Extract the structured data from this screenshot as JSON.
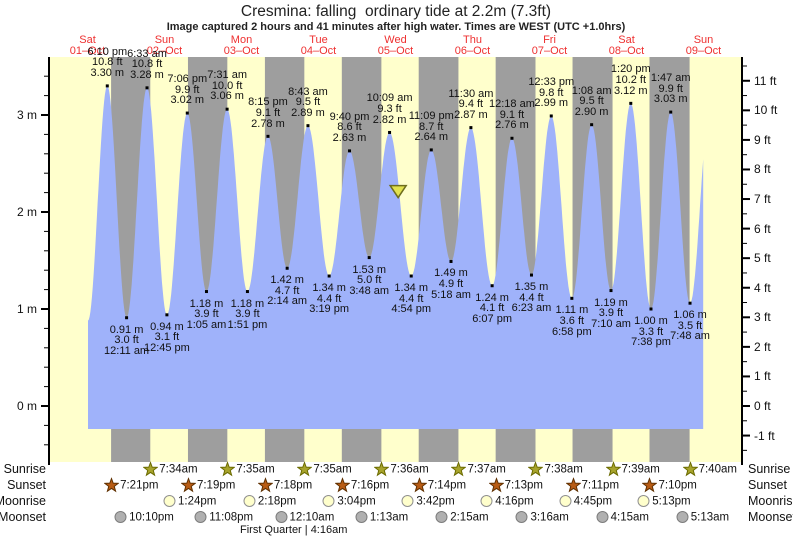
{
  "chart_data": {
    "type": "area",
    "title": "Cresmina: falling  ordinary tide at 2.2m (7.3ft)",
    "subtitle": "Image captured 2 hours and 41 minutes after high water. Times are WEST (UTC +1.0hrs)",
    "x_axis": {
      "days": [
        {
          "name": "Sat",
          "date": "01–Oct"
        },
        {
          "name": "Sun",
          "date": "02–Oct"
        },
        {
          "name": "Mon",
          "date": "03–Oct"
        },
        {
          "name": "Tue",
          "date": "04–Oct"
        },
        {
          "name": "Wed",
          "date": "05–Oct"
        },
        {
          "name": "Thu",
          "date": "06–Oct"
        },
        {
          "name": "Fri",
          "date": "07–Oct"
        },
        {
          "name": "Sat",
          "date": "08–Oct"
        },
        {
          "name": "Sun",
          "date": "09–Oct"
        }
      ]
    },
    "y_axis_left": {
      "unit": "m",
      "major_ticks": [
        0,
        1,
        2,
        3
      ],
      "labels": [
        "0 m",
        "1 m",
        "2 m",
        "3 m"
      ],
      "minor_step": 0.2
    },
    "y_axis_right": {
      "unit": "ft",
      "major_ticks": [
        -1,
        0,
        1,
        2,
        3,
        4,
        5,
        6,
        7,
        8,
        9,
        10,
        11
      ],
      "labels": [
        "-1 ft",
        "0 ft",
        "1 ft",
        "2 ft",
        "3 ft",
        "4 ft",
        "5 ft",
        "6 ft",
        "7 ft",
        "8 ft",
        "9 ft",
        "10 ft",
        "11 ft"
      ],
      "minor_step": 0.5
    },
    "high_tides": [
      {
        "day": 0,
        "t": 18.167,
        "time": "6:10 pm",
        "ft": "10.8 ft",
        "m": "3.30 m",
        "m_val": 3.3
      },
      {
        "day": 1,
        "t": 6.55,
        "time": "6:33 am",
        "ft": "10.8 ft",
        "m": "3.28 m",
        "m_val": 3.28
      },
      {
        "day": 1,
        "t": 19.1,
        "time": "7:06 pm",
        "ft": "9.9 ft",
        "m": "3.02 m",
        "m_val": 3.02
      },
      {
        "day": 2,
        "t": 7.517,
        "time": "7:31 am",
        "ft": "10.0 ft",
        "m": "3.06 m",
        "m_val": 3.06
      },
      {
        "day": 2,
        "t": 20.25,
        "time": "8:15 pm",
        "ft": "9.1 ft",
        "m": "2.78 m",
        "m_val": 2.78
      },
      {
        "day": 3,
        "t": 8.717,
        "time": "8:43 am",
        "ft": "9.5 ft",
        "m": "2.89 m",
        "m_val": 2.89
      },
      {
        "day": 3,
        "t": 21.667,
        "time": "9:40 pm",
        "ft": "8.6 ft",
        "m": "2.63 m",
        "m_val": 2.63
      },
      {
        "day": 4,
        "t": 10.15,
        "time": "10:09 am",
        "ft": "9.3 ft",
        "m": "2.82 m",
        "m_val": 2.82
      },
      {
        "day": 4,
        "t": 23.15,
        "time": "11:09 pm",
        "ft": "8.7 ft",
        "m": "2.64 m",
        "m_val": 2.64
      },
      {
        "day": 5,
        "t": 11.5,
        "time": "11:30 am",
        "ft": "9.4 ft",
        "m": "2.87 m",
        "m_val": 2.87
      },
      {
        "day": 6,
        "t": 0.3,
        "time": "12:18 am",
        "ft": "9.1 ft",
        "m": "2.76 m",
        "m_val": 2.76
      },
      {
        "day": 6,
        "t": 12.55,
        "time": "12:33 pm",
        "ft": "9.8 ft",
        "m": "2.99 m",
        "m_val": 2.99
      },
      {
        "day": 7,
        "t": 1.133,
        "time": "1:08 am",
        "ft": "9.5 ft",
        "m": "2.90 m",
        "m_val": 2.9
      },
      {
        "day": 7,
        "t": 13.333,
        "time": "1:20 pm",
        "ft": "10.2 ft",
        "m": "3.12 m",
        "m_val": 3.12
      },
      {
        "day": 8,
        "t": 1.783,
        "time": "1:47 am",
        "ft": "9.9 ft",
        "m": "3.03 m",
        "m_val": 3.03
      }
    ],
    "low_tides": [
      {
        "day": 1,
        "t": 0.183,
        "time": "12:11 am",
        "ft": "3.0 ft",
        "m": "0.91 m",
        "m_val": 0.91
      },
      {
        "day": 1,
        "t": 12.75,
        "time": "12:45 pm",
        "ft": "3.1 ft",
        "m": "0.94 m",
        "m_val": 0.94
      },
      {
        "day": 2,
        "t": 1.083,
        "time": "1:05 am",
        "ft": "3.9 ft",
        "m": "1.18 m",
        "m_val": 1.18
      },
      {
        "day": 2,
        "t": 13.85,
        "time": "1:51 pm",
        "ft": "3.9 ft",
        "m": "1.18 m",
        "m_val": 1.18
      },
      {
        "day": 3,
        "t": 2.233,
        "time": "2:14 am",
        "ft": "4.7 ft",
        "m": "1.42 m",
        "m_val": 1.42
      },
      {
        "day": 3,
        "t": 15.317,
        "time": "3:19 pm",
        "ft": "4.4 ft",
        "m": "1.34 m",
        "m_val": 1.34
      },
      {
        "day": 4,
        "t": 3.8,
        "time": "3:48 am",
        "ft": "5.0 ft",
        "m": "1.53 m",
        "m_val": 1.53
      },
      {
        "day": 4,
        "t": 16.9,
        "time": "4:54 pm",
        "ft": "4.4 ft",
        "m": "1.34 m",
        "m_val": 1.34
      },
      {
        "day": 5,
        "t": 5.3,
        "time": "5:18 am",
        "ft": "4.9 ft",
        "m": "1.49 m",
        "m_val": 1.49
      },
      {
        "day": 5,
        "t": 18.117,
        "time": "6:07 pm",
        "ft": "4.1 ft",
        "m": "1.24 m",
        "m_val": 1.24
      },
      {
        "day": 6,
        "t": 6.383,
        "time": "6:23 am",
        "ft": "4.4 ft",
        "m": "1.35 m",
        "m_val": 1.35
      },
      {
        "day": 6,
        "t": 18.967,
        "time": "6:58 pm",
        "ft": "3.6 ft",
        "m": "1.11 m",
        "m_val": 1.11
      },
      {
        "day": 7,
        "t": 7.167,
        "time": "7:10 am",
        "ft": "3.9 ft",
        "m": "1.19 m",
        "m_val": 1.19
      },
      {
        "day": 7,
        "t": 19.633,
        "time": "7:38 pm",
        "ft": "3.3 ft",
        "m": "1.00 m",
        "m_val": 1.0
      },
      {
        "day": 8,
        "t": 7.8,
        "time": "7:48 am",
        "ft": "3.5 ft",
        "m": "1.06 m",
        "m_val": 1.06
      }
    ],
    "curve_edges": {
      "start": {
        "day": 0,
        "t": 12.16,
        "m_val": 0.88
      },
      "cut": {
        "day": 8,
        "t": 11.9
      },
      "end_virtual": {
        "day": 8,
        "t": 14.1,
        "m_val": 3.1
      }
    },
    "current_marker": {
      "m_val": 2.2,
      "day": 4,
      "t": 12.83,
      "shape": "triangle-down"
    },
    "sun_moon": {
      "rows": [
        {
          "key": "sunrise",
          "label": "Sunrise"
        },
        {
          "key": "sunset",
          "label": "Sunset"
        },
        {
          "key": "moonrise",
          "label": "Moonrise"
        },
        {
          "key": "moonset",
          "label": "Moonset"
        }
      ],
      "sunrise": [
        {
          "day": 1,
          "t": 7.567,
          "label": "7:34am"
        },
        {
          "day": 2,
          "t": 7.583,
          "label": "7:35am"
        },
        {
          "day": 3,
          "t": 7.583,
          "label": "7:35am"
        },
        {
          "day": 4,
          "t": 7.6,
          "label": "7:36am"
        },
        {
          "day": 5,
          "t": 7.617,
          "label": "7:37am"
        },
        {
          "day": 6,
          "t": 7.633,
          "label": "7:38am"
        },
        {
          "day": 7,
          "t": 7.65,
          "label": "7:39am"
        },
        {
          "day": 8,
          "t": 7.667,
          "label": "7:40am"
        }
      ],
      "sunset": [
        {
          "day": 0,
          "t": 19.35,
          "label": "7:21pm"
        },
        {
          "day": 1,
          "t": 19.317,
          "label": "7:19pm"
        },
        {
          "day": 2,
          "t": 19.3,
          "label": "7:18pm"
        },
        {
          "day": 3,
          "t": 19.267,
          "label": "7:16pm"
        },
        {
          "day": 4,
          "t": 19.233,
          "label": "7:14pm"
        },
        {
          "day": 5,
          "t": 19.217,
          "label": "7:13pm"
        },
        {
          "day": 6,
          "t": 19.183,
          "label": "7:11pm"
        },
        {
          "day": 7,
          "t": 19.167,
          "label": "7:10pm"
        }
      ],
      "moonrise": [
        {
          "day": 1,
          "t": 13.4,
          "label": "1:24pm"
        },
        {
          "day": 2,
          "t": 14.3,
          "label": "2:18pm"
        },
        {
          "day": 3,
          "t": 15.067,
          "label": "3:04pm"
        },
        {
          "day": 4,
          "t": 15.7,
          "label": "3:42pm"
        },
        {
          "day": 5,
          "t": 16.267,
          "label": "4:16pm"
        },
        {
          "day": 6,
          "t": 16.75,
          "label": "4:45pm"
        },
        {
          "day": 7,
          "t": 17.217,
          "label": "5:13pm"
        }
      ],
      "moonset": [
        {
          "day": 0,
          "t": 22.167,
          "label": "10:10pm"
        },
        {
          "day": 1,
          "t": 23.133,
          "label": "11:08pm"
        },
        {
          "day": 3,
          "t": 0.167,
          "label": "12:10am"
        },
        {
          "day": 4,
          "t": 1.217,
          "label": "1:13am"
        },
        {
          "day": 5,
          "t": 2.25,
          "label": "2:15am"
        },
        {
          "day": 6,
          "t": 3.267,
          "label": "3:16am"
        },
        {
          "day": 7,
          "t": 4.25,
          "label": "4:15am"
        },
        {
          "day": 8,
          "t": 5.217,
          "label": "5:13am"
        }
      ],
      "moon_phase": {
        "label": "First Quarter | 4:16am",
        "day": 3,
        "t": 4.267
      }
    },
    "colors": {
      "day_band": "#ffffcc",
      "night_band": "#9e9e9e",
      "tide_fill": "#9fb2fa",
      "day_label": "#ee3030",
      "sunrise_star": "#a8a42c",
      "sunrise_star_border": "#6b6b00",
      "sunset_star": "#b85c14",
      "sunset_star_border": "#5f3000",
      "moonrise_circle": "#ffffcc",
      "moonrise_circle_border": "#909090",
      "moonset_circle": "#b0b0b0",
      "moonset_circle_border": "#7d7d7d",
      "marker_fill": "#e2e24e",
      "marker_border": "#6e6e1e",
      "axis": "#000000"
    }
  }
}
